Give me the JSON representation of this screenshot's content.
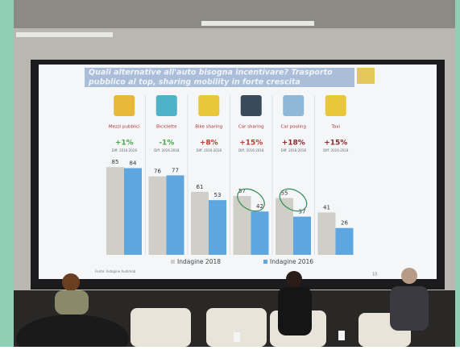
{
  "slide": {
    "title_lines": [
      "Quali alternative all'auto bisogna incentivare? Trasporto",
      "pubblico al top, sharing mobility in forte crescita"
    ],
    "source": "Fonte: Indagine Audimob",
    "page": "10"
  },
  "chart_data": {
    "type": "bar",
    "categories": [
      "Mezzi pubblici",
      "Biciclette",
      "Bike sharing",
      "Car sharing",
      "Car pooling",
      "Taxi"
    ],
    "changes": [
      "+1%",
      "-1%",
      "+8%",
      "+15%",
      "+18%",
      "+15%"
    ],
    "change_colors": [
      "#4aa84a",
      "#4aa84a",
      "#c0392b",
      "#c0392b",
      "#8a2a2a",
      "#8a2a2a"
    ],
    "change_note": "Diff. 2016-2018",
    "series": [
      {
        "name": "Indagine 2018",
        "color": "#cfcfc8",
        "values": [
          85,
          76,
          61,
          57,
          55,
          41
        ]
      },
      {
        "name": "Indagine 2016",
        "color": "#5ea6df",
        "values": [
          84,
          77,
          53,
          42,
          37,
          26
        ]
      }
    ]
  }
}
